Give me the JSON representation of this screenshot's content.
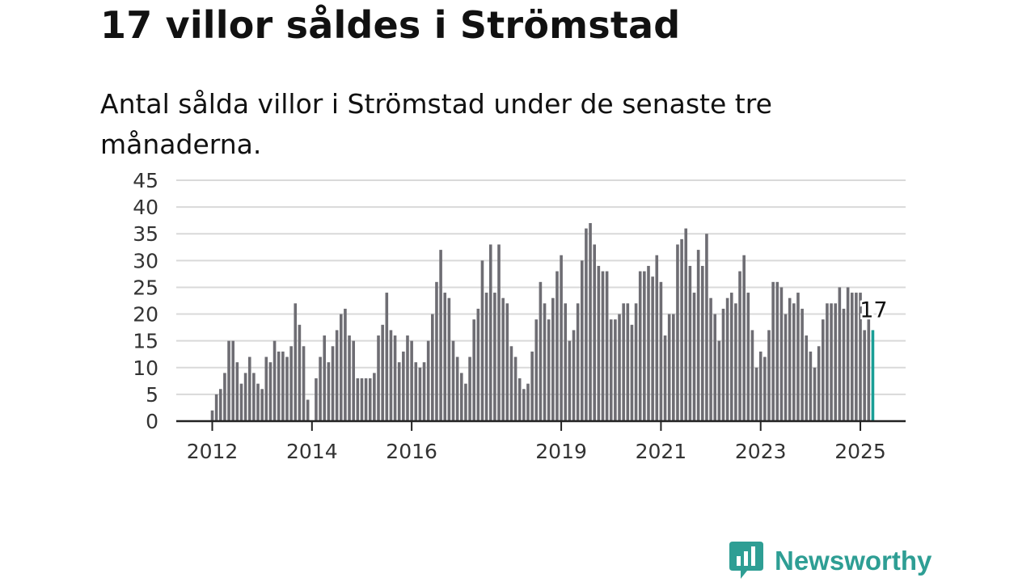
{
  "title": "17 villor såldes i Strömstad",
  "subtitle": "Antal sålda villor i Strömstad under de senaste tre månaderna.",
  "brand": {
    "name": "Newsworthy",
    "color": "#2e9e94",
    "icon": "newsworthy-logo-icon"
  },
  "colors": {
    "bar": "#6e6d73",
    "highlight": "#1a9e96",
    "grid": "#d9d9d9",
    "axis": "#222222"
  },
  "chart_data": {
    "type": "bar",
    "x_start": "2012-01",
    "ylim": [
      0,
      45
    ],
    "yticks": [
      0,
      5,
      10,
      15,
      20,
      25,
      30,
      35,
      40,
      45
    ],
    "xticks": [
      "2012",
      "2014",
      "2016",
      "2019",
      "2021",
      "2023",
      "2025"
    ],
    "grid": true,
    "values": [
      2,
      5,
      6,
      9,
      15,
      15,
      11,
      7,
      9,
      12,
      9,
      7,
      6,
      12,
      11,
      15,
      13,
      13,
      12,
      14,
      22,
      18,
      14,
      4,
      0,
      8,
      12,
      16,
      11,
      14,
      17,
      20,
      21,
      16,
      15,
      8,
      8,
      8,
      8,
      9,
      16,
      18,
      24,
      17,
      16,
      11,
      13,
      16,
      15,
      11,
      10,
      11,
      15,
      20,
      26,
      32,
      24,
      23,
      15,
      12,
      9,
      7,
      12,
      19,
      21,
      30,
      24,
      33,
      24,
      33,
      23,
      22,
      14,
      12,
      8,
      6,
      7,
      13,
      19,
      26,
      22,
      19,
      23,
      28,
      31,
      22,
      15,
      17,
      22,
      30,
      36,
      37,
      33,
      29,
      28,
      28,
      19,
      19,
      20,
      22,
      22,
      18,
      22,
      28,
      28,
      29,
      27,
      31,
      26,
      16,
      20,
      20,
      33,
      34,
      36,
      29,
      24,
      32,
      29,
      35,
      23,
      20,
      15,
      21,
      23,
      24,
      22,
      28,
      31,
      24,
      17,
      10,
      13,
      12,
      17,
      26,
      26,
      25,
      20,
      23,
      22,
      24,
      21,
      16,
      13,
      10,
      14,
      19,
      22,
      22,
      22,
      25,
      21,
      25,
      24,
      24,
      24,
      17,
      19,
      17
    ],
    "highlight_label": "17"
  }
}
